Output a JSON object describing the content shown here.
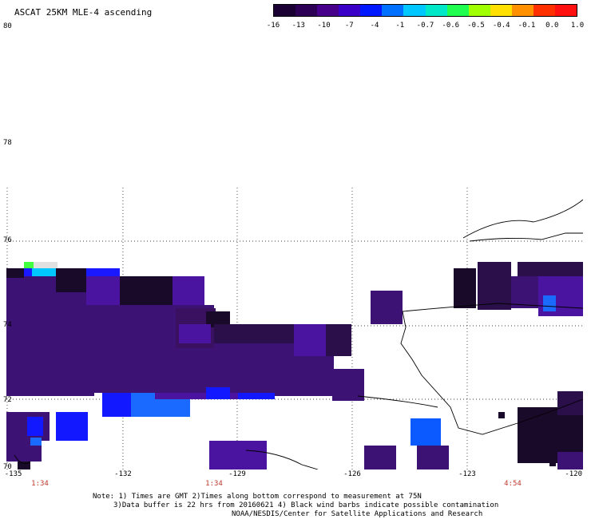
{
  "title": "ASCAT 25KM MLE-4 ascending",
  "colorbar": {
    "labels": [
      "-16",
      "-13",
      "-10",
      "-7",
      "-4",
      "-1",
      "-0.7",
      "-0.6",
      "-0.5",
      "-0.4",
      "-0.1",
      "0.0",
      "1.0"
    ],
    "colors": [
      "#1a0033",
      "#2d0055",
      "#46008a",
      "#3a00c8",
      "#0018ff",
      "#0070ff",
      "#00c8ff",
      "#00e8c8",
      "#20ff50",
      "#a0ff00",
      "#ffe000",
      "#ff9000",
      "#ff3000",
      "#ff1010"
    ]
  },
  "lat_labels": [
    "80",
    "78",
    "76",
    "74",
    "72",
    "70"
  ],
  "lon_labels": [
    "-135",
    "-132",
    "-129",
    "-126",
    "-123",
    "-120"
  ],
  "time_labels": [
    "1:34",
    "1:34",
    "4:54"
  ],
  "notes": {
    "line1": "Note: 1) Times are GMT 2)Times along bottom correspond to measurement at 75N",
    "line2": "3)Data buffer is 22 hrs from 20160621 4) Black wind barbs indicate possible contamination",
    "line3": "NOAA/NESDIS/Center for Satellite Applications and Research"
  },
  "colors": {
    "dark": "#1a0a2a",
    "purple": "#3d1275",
    "violet": "#4a14a0",
    "blue": "#1218ff",
    "lightblue": "#1a6aff",
    "brightblue": "#0a5aff"
  }
}
